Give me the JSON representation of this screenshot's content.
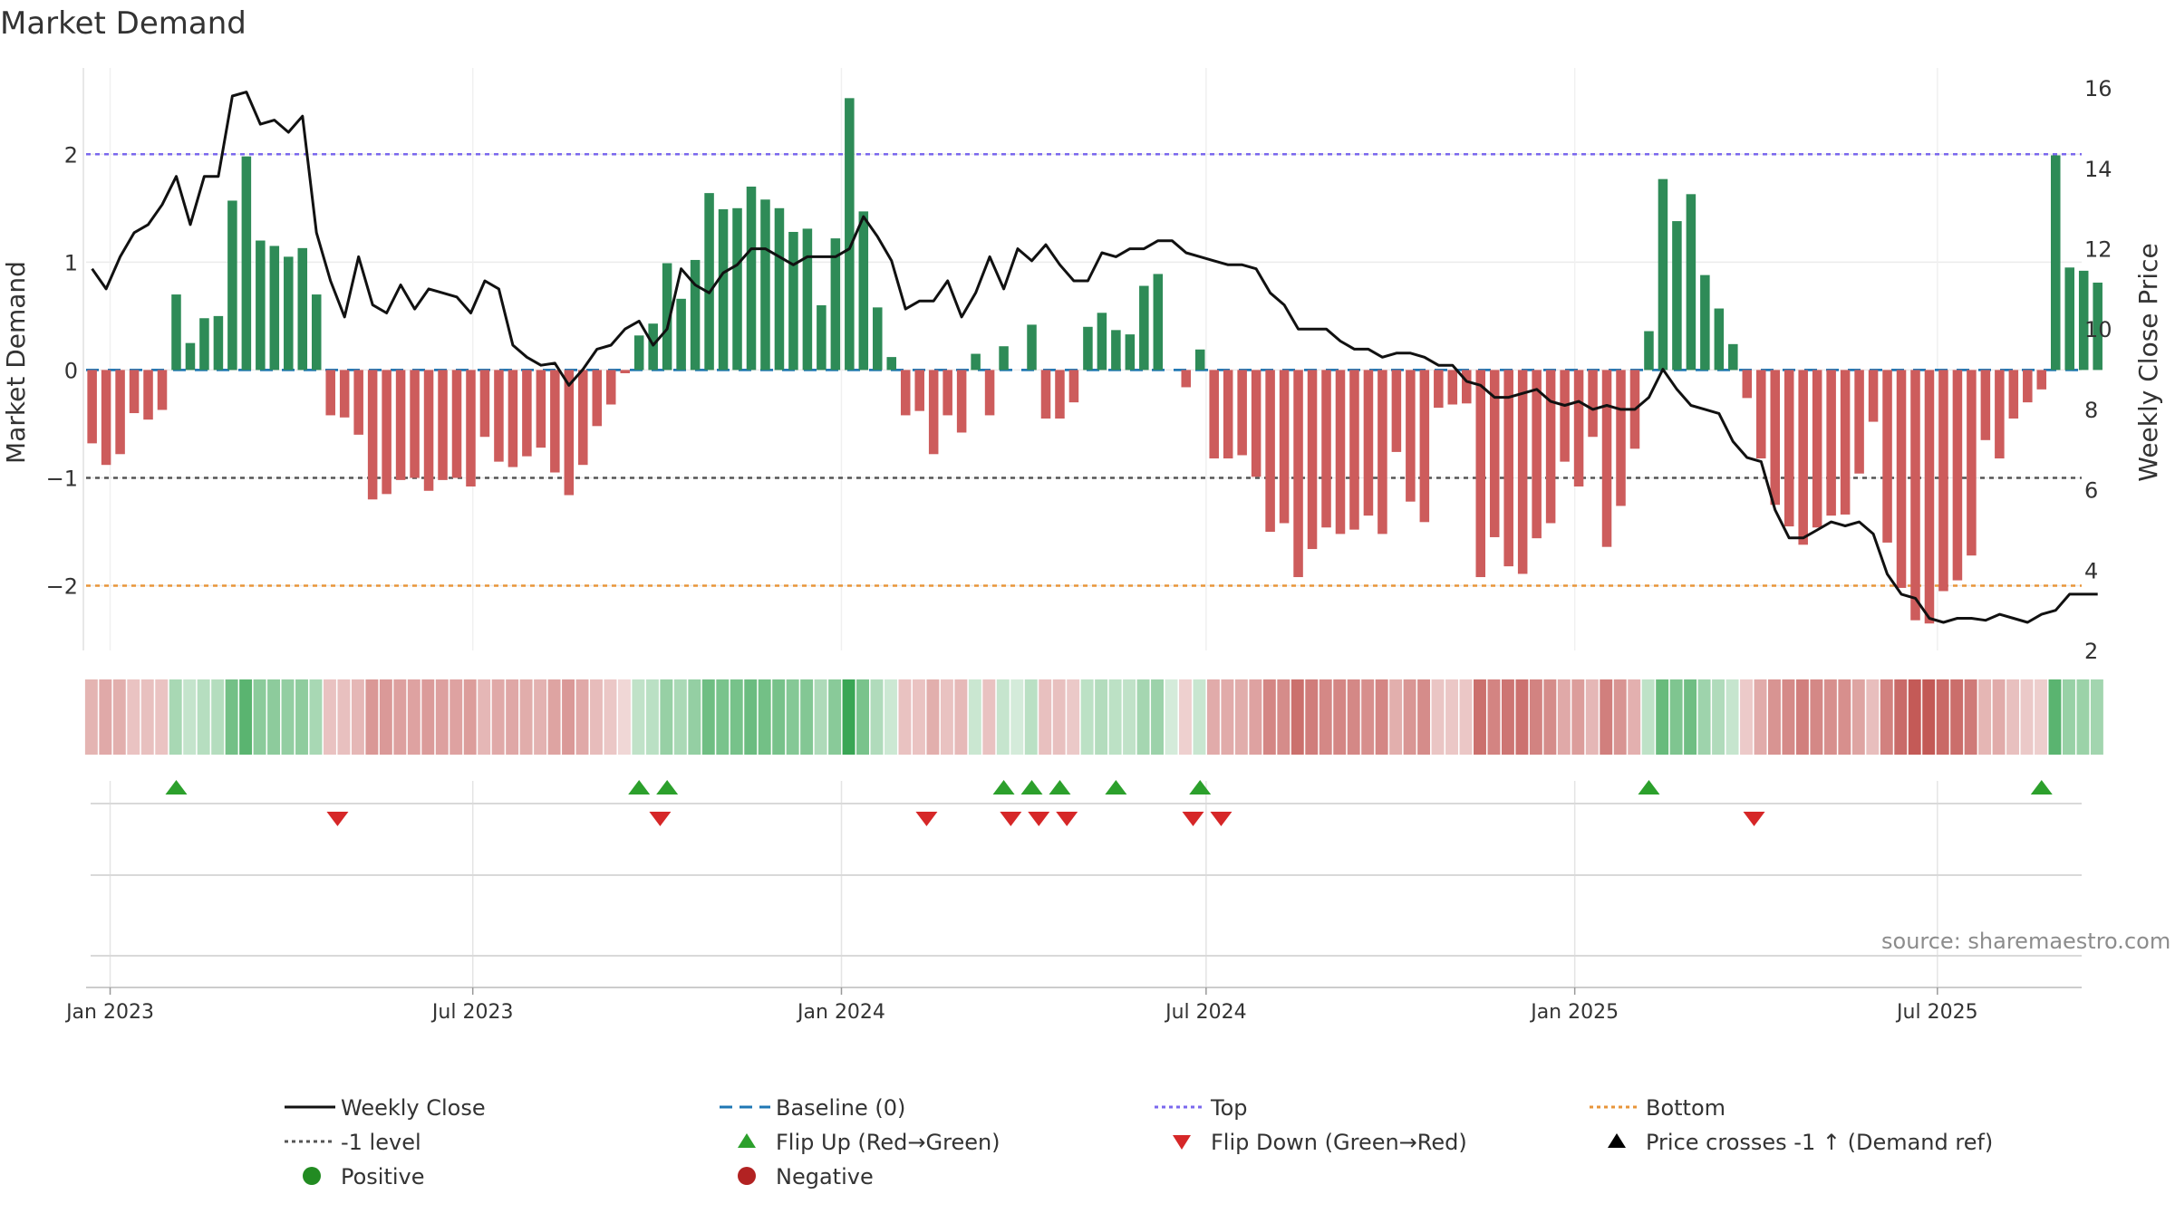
{
  "colors": {
    "positive": "#2e8b57",
    "negative": "#cd5c5c",
    "price_line": "#111111",
    "top_line": "#7b68ee",
    "bottom_line": "#e8953a",
    "minus1_line": "#555555",
    "baseline": "#1f77b4",
    "flip_up": "#2ca02c",
    "flip_down": "#d62728",
    "heat_green": "#3aa655",
    "heat_red": "#c0504d"
  },
  "chart_data": {
    "type": "bar",
    "title": "Market Demand",
    "ylabel": "Market Demand",
    "y2label": "Weekly Close Price",
    "ylim": [
      -2.6,
      2.8
    ],
    "y2lim": [
      2,
      16.5
    ],
    "yticks": [
      -2,
      -1,
      0,
      1,
      2
    ],
    "ytick_labels": [
      "−2",
      "−1",
      "0",
      "1",
      "2"
    ],
    "y2ticks": [
      2,
      4,
      6,
      8,
      10,
      12,
      14,
      16
    ],
    "y2tick_labels": [
      "2",
      "4",
      "6",
      "8",
      "10",
      "12",
      "14",
      "16"
    ],
    "x_start": "2022-12-20",
    "x_end": "2025-09-11",
    "first_week": "2022-12-23",
    "week_count": 144,
    "x_tick_dates": [
      "2023-01-01",
      "2023-07-01",
      "2024-01-01",
      "2024-07-01",
      "2025-01-01",
      "2025-07-01"
    ],
    "x_tick_labels": [
      "Jan 2023",
      "Jul 2023",
      "Jan 2024",
      "Jul 2024",
      "Jan 2025",
      "Jul 2025"
    ],
    "reference_lines": [
      {
        "name": "Top",
        "value": 2
      },
      {
        "name": "-1 level",
        "value": -1
      },
      {
        "name": "Bottom",
        "value": -2
      },
      {
        "name": "Baseline (0)",
        "value": 0
      }
    ],
    "demand": [
      -0.68,
      -0.88,
      -0.78,
      -0.4,
      -0.46,
      -0.37,
      0.7,
      0.25,
      0.48,
      0.5,
      1.57,
      1.98,
      1.2,
      1.15,
      1.05,
      1.13,
      0.7,
      -0.42,
      -0.44,
      -0.6,
      -1.2,
      -1.15,
      -1.02,
      -1.0,
      -1.12,
      -1.02,
      -1.0,
      -1.08,
      -0.62,
      -0.85,
      -0.9,
      -0.8,
      -0.72,
      -0.95,
      -1.16,
      -0.88,
      -0.52,
      -0.32,
      -0.03,
      0.32,
      0.43,
      0.99,
      0.66,
      1.02,
      1.64,
      1.49,
      1.5,
      1.7,
      1.58,
      1.5,
      1.28,
      1.31,
      0.6,
      1.22,
      2.52,
      1.47,
      0.58,
      0.12,
      -0.42,
      -0.38,
      -0.78,
      -0.42,
      -0.58,
      0.15,
      -0.42,
      0.22,
      0.0,
      0.42,
      -0.45,
      -0.45,
      -0.3,
      0.4,
      0.53,
      0.37,
      0.33,
      0.78,
      0.89,
      0.0,
      -0.16,
      0.19,
      -0.82,
      -0.82,
      -0.79,
      -0.99,
      -1.5,
      -1.42,
      -1.92,
      -1.66,
      -1.46,
      -1.52,
      -1.48,
      -1.35,
      -1.52,
      -0.76,
      -1.22,
      -1.41,
      -0.35,
      -0.32,
      -0.31,
      -1.92,
      -1.55,
      -1.82,
      -1.89,
      -1.56,
      -1.42,
      -0.85,
      -1.08,
      -0.62,
      -1.64,
      -1.26,
      -0.73,
      0.36,
      1.77,
      1.38,
      1.63,
      0.88,
      0.57,
      0.24,
      -0.26,
      -0.82,
      -1.25,
      -1.45,
      -1.62,
      -1.46,
      -1.35,
      -1.34,
      -0.96,
      -0.48,
      -1.6,
      -2.02,
      -2.32,
      -2.35,
      -2.05,
      -1.95,
      -1.72,
      -0.65,
      -0.82,
      -0.45,
      -0.3,
      -0.18,
      1.99,
      0.95,
      0.92,
      0.81
    ],
    "price": [
      11.5,
      11.0,
      11.8,
      12.4,
      12.6,
      13.1,
      13.8,
      12.6,
      13.8,
      13.8,
      15.8,
      15.9,
      15.1,
      15.2,
      14.9,
      15.3,
      12.4,
      11.2,
      10.3,
      11.8,
      10.6,
      10.4,
      11.1,
      10.5,
      11.0,
      10.9,
      10.8,
      10.4,
      11.2,
      11.0,
      9.6,
      9.3,
      9.1,
      9.15,
      8.6,
      9.0,
      9.5,
      9.6,
      10.0,
      10.2,
      9.6,
      10.0,
      11.5,
      11.1,
      10.9,
      11.4,
      11.6,
      12.0,
      12.0,
      11.8,
      11.6,
      11.8,
      11.8,
      11.8,
      12.0,
      12.8,
      12.3,
      11.7,
      10.5,
      10.7,
      10.7,
      11.2,
      10.3,
      10.9,
      11.8,
      11.0,
      12.0,
      11.7,
      12.1,
      11.6,
      11.2,
      11.2,
      11.9,
      11.8,
      12.0,
      12.0,
      12.2,
      12.2,
      11.9,
      11.8,
      11.7,
      11.6,
      11.6,
      11.5,
      10.9,
      10.6,
      10.0,
      10.0,
      10.0,
      9.7,
      9.5,
      9.5,
      9.3,
      9.4,
      9.4,
      9.3,
      9.1,
      9.1,
      8.7,
      8.6,
      8.3,
      8.3,
      8.4,
      8.5,
      8.2,
      8.1,
      8.2,
      8.0,
      8.1,
      8.0,
      8.0,
      8.3,
      9.0,
      8.5,
      8.1,
      8.0,
      7.9,
      7.2,
      6.8,
      6.7,
      5.5,
      4.8,
      4.8,
      5.0,
      5.2,
      5.1,
      5.2,
      4.9,
      3.9,
      3.4,
      3.3,
      2.8,
      2.7,
      2.8,
      2.8,
      2.75,
      2.9,
      2.8,
      2.7,
      2.9,
      3.0,
      3.4,
      3.4,
      3.4
    ],
    "flip_up_idx": [
      6,
      39,
      41,
      65,
      67,
      69,
      73,
      79,
      111,
      139
    ],
    "flip_down_idx": [
      17,
      40,
      59,
      65,
      67,
      69,
      78,
      80,
      118
    ]
  },
  "legend": [
    {
      "label": "Weekly Close",
      "marker": "solid-line",
      "color": "#111111"
    },
    {
      "label": "Baseline (0)",
      "marker": "dashed-line",
      "color": "#1f77b4"
    },
    {
      "label": "Top",
      "marker": "dotted-line",
      "color": "#7b68ee"
    },
    {
      "label": "Bottom",
      "marker": "dotted-line",
      "color": "#e8953a"
    },
    {
      "label": "-1 level",
      "marker": "dotted-line",
      "color": "#555555"
    },
    {
      "label": "Flip Up (Red→Green)",
      "marker": "triangle-up",
      "color": "#2ca02c"
    },
    {
      "label": "Flip Down (Green→Red)",
      "marker": "triangle-down",
      "color": "#d62728"
    },
    {
      "label": "Price crosses -1 ↑ (Demand ref)",
      "marker": "triangle-up",
      "color": "#000000"
    },
    {
      "label": "Positive",
      "marker": "circle",
      "color": "#228b22"
    },
    {
      "label": "Negative",
      "marker": "circle",
      "color": "#b22222"
    }
  ],
  "watermark": "source: sharemaestro.com"
}
